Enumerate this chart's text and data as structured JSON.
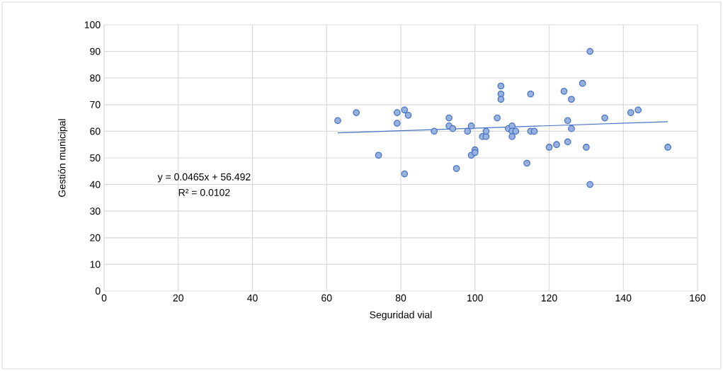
{
  "chart_data": {
    "type": "scatter",
    "xlabel": "Seguridad vial",
    "ylabel": "Gestión municipal",
    "x": [
      63,
      68,
      74,
      79,
      79,
      81,
      81,
      82,
      89,
      93,
      93,
      94,
      95,
      98,
      99,
      99,
      100,
      100,
      102,
      103,
      103,
      106,
      107,
      107,
      107,
      109,
      110,
      110,
      110,
      111,
      114,
      115,
      115,
      116,
      120,
      122,
      124,
      125,
      125,
      126,
      126,
      129,
      130,
      131,
      131,
      135,
      142,
      144,
      152
    ],
    "series": [
      {
        "marker": "circle",
        "color": "#4472c4",
        "values": [
          64,
          67,
          51,
          67,
          63,
          68,
          44,
          66,
          60,
          65,
          62,
          61,
          46,
          60,
          62,
          51,
          53,
          52,
          58,
          58,
          60,
          65,
          77,
          74,
          72,
          61,
          62,
          60,
          58,
          60,
          48,
          74,
          60,
          60,
          54,
          55,
          75,
          64,
          56,
          72,
          61,
          78,
          54,
          90,
          40,
          65,
          67,
          68,
          54
        ]
      },
      {
        "type": "line",
        "color": "#4472c4",
        "x": [
          63,
          152
        ],
        "values": [
          59.4,
          63.6
        ]
      }
    ],
    "xlim": [
      0,
      160
    ],
    "xticks": [
      0,
      20,
      40,
      60,
      80,
      100,
      120,
      140,
      160
    ],
    "ylim": [
      0,
      100
    ],
    "yticks": [
      0,
      10,
      20,
      30,
      40,
      50,
      60,
      70,
      80,
      90,
      100
    ],
    "grid": true,
    "annotations": [
      "y = 0.0465x + 56.492",
      "R² = 0.0102"
    ]
  }
}
